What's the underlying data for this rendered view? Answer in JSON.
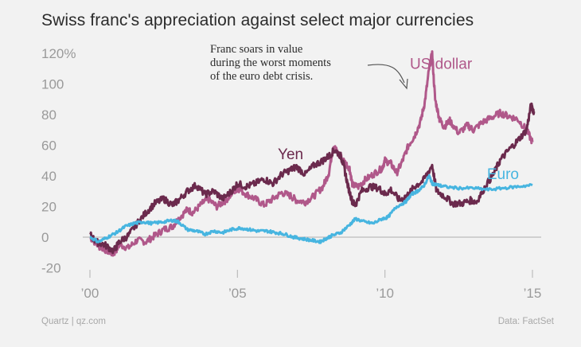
{
  "title": "Swiss franc's appreciation against select major currencies",
  "footer": {
    "source_left": "Quartz | qz.com",
    "source_right": "Data: FactSet"
  },
  "annotation": {
    "lines": [
      "Franc soars in value",
      "during the worst moments",
      "of the euro debt crisis."
    ]
  },
  "chart_data": {
    "type": "line",
    "title": "Swiss franc's appreciation against select major currencies",
    "xlabel": "",
    "ylabel": "",
    "xlim": [
      2000,
      2015.2
    ],
    "ylim": [
      -25,
      125
    ],
    "x_ticks": [
      {
        "value": 2000,
        "label": "’00"
      },
      {
        "value": 2005,
        "label": "’05"
      },
      {
        "value": 2010,
        "label": "’10"
      },
      {
        "value": 2015,
        "label": "’15"
      }
    ],
    "y_ticks": [
      {
        "value": 120,
        "label": "120%"
      },
      {
        "value": 100,
        "label": "100"
      },
      {
        "value": 80,
        "label": "80"
      },
      {
        "value": 60,
        "label": "60"
      },
      {
        "value": 40,
        "label": "40"
      },
      {
        "value": 20,
        "label": "20"
      },
      {
        "value": 0,
        "label": "0"
      },
      {
        "value": -20,
        "label": "-20"
      }
    ],
    "grid": false,
    "zero_line": true,
    "series": [
      {
        "name": "US dollar",
        "color": "#b0588a",
        "label_pos": {
          "x": 2011.9,
          "y": 110
        },
        "points": [
          [
            2000.0,
            0
          ],
          [
            2000.3,
            -6
          ],
          [
            2000.6,
            -9
          ],
          [
            2000.8,
            -11
          ],
          [
            2001.0,
            -5
          ],
          [
            2001.3,
            -7
          ],
          [
            2001.6,
            -2
          ],
          [
            2001.9,
            -3
          ],
          [
            2002.2,
            1
          ],
          [
            2002.5,
            5
          ],
          [
            2002.8,
            7
          ],
          [
            2003.0,
            12
          ],
          [
            2003.3,
            18
          ],
          [
            2003.5,
            16
          ],
          [
            2003.8,
            22
          ],
          [
            2004.0,
            25
          ],
          [
            2004.3,
            20
          ],
          [
            2004.6,
            24
          ],
          [
            2004.9,
            30
          ],
          [
            2005.0,
            32
          ],
          [
            2005.3,
            28
          ],
          [
            2005.6,
            25
          ],
          [
            2005.9,
            21
          ],
          [
            2006.2,
            25
          ],
          [
            2006.5,
            29
          ],
          [
            2006.8,
            27
          ],
          [
            2007.0,
            24
          ],
          [
            2007.3,
            23
          ],
          [
            2007.6,
            27
          ],
          [
            2007.9,
            33
          ],
          [
            2008.1,
            42
          ],
          [
            2008.25,
            60
          ],
          [
            2008.4,
            55
          ],
          [
            2008.6,
            50
          ],
          [
            2008.8,
            45
          ],
          [
            2008.9,
            34
          ],
          [
            2009.1,
            33
          ],
          [
            2009.3,
            37
          ],
          [
            2009.6,
            41
          ],
          [
            2009.9,
            45
          ],
          [
            2010.0,
            50
          ],
          [
            2010.2,
            48
          ],
          [
            2010.4,
            42
          ],
          [
            2010.6,
            50
          ],
          [
            2010.8,
            60
          ],
          [
            2011.0,
            66
          ],
          [
            2011.2,
            75
          ],
          [
            2011.35,
            88
          ],
          [
            2011.5,
            110
          ],
          [
            2011.6,
            120
          ],
          [
            2011.7,
            90
          ],
          [
            2011.85,
            77
          ],
          [
            2012.0,
            72
          ],
          [
            2012.2,
            76
          ],
          [
            2012.5,
            68
          ],
          [
            2012.8,
            73
          ],
          [
            2013.0,
            70
          ],
          [
            2013.3,
            75
          ],
          [
            2013.6,
            78
          ],
          [
            2013.9,
            81
          ],
          [
            2014.2,
            79
          ],
          [
            2014.5,
            77
          ],
          [
            2014.8,
            70
          ],
          [
            2015.0,
            62
          ]
        ]
      },
      {
        "name": "Yen",
        "color": "#6b2a4d",
        "label_pos": {
          "x": 2006.8,
          "y": 51
        },
        "points": [
          [
            2000.0,
            2
          ],
          [
            2000.2,
            -3
          ],
          [
            2000.5,
            -5
          ],
          [
            2000.8,
            -9
          ],
          [
            2001.0,
            -3
          ],
          [
            2001.3,
            1
          ],
          [
            2001.6,
            9
          ],
          [
            2001.9,
            16
          ],
          [
            2002.2,
            22
          ],
          [
            2002.5,
            25
          ],
          [
            2002.8,
            21
          ],
          [
            2003.0,
            24
          ],
          [
            2003.3,
            30
          ],
          [
            2003.6,
            34
          ],
          [
            2003.9,
            28
          ],
          [
            2004.2,
            30
          ],
          [
            2004.5,
            25
          ],
          [
            2004.8,
            30
          ],
          [
            2005.0,
            35
          ],
          [
            2005.3,
            33
          ],
          [
            2005.6,
            35
          ],
          [
            2005.9,
            38
          ],
          [
            2006.2,
            35
          ],
          [
            2006.5,
            41
          ],
          [
            2006.8,
            44
          ],
          [
            2007.0,
            46
          ],
          [
            2007.3,
            41
          ],
          [
            2007.6,
            47
          ],
          [
            2007.9,
            50
          ],
          [
            2008.1,
            53
          ],
          [
            2008.3,
            57
          ],
          [
            2008.5,
            53
          ],
          [
            2008.6,
            47
          ],
          [
            2008.75,
            33
          ],
          [
            2008.9,
            23
          ],
          [
            2009.0,
            21
          ],
          [
            2009.2,
            30
          ],
          [
            2009.5,
            33
          ],
          [
            2009.8,
            32
          ],
          [
            2010.0,
            28
          ],
          [
            2010.2,
            31
          ],
          [
            2010.5,
            24
          ],
          [
            2010.8,
            28
          ],
          [
            2011.0,
            33
          ],
          [
            2011.3,
            37
          ],
          [
            2011.6,
            47
          ],
          [
            2011.75,
            30
          ],
          [
            2012.0,
            27
          ],
          [
            2012.3,
            22
          ],
          [
            2012.6,
            22
          ],
          [
            2012.9,
            24
          ],
          [
            2013.1,
            23
          ],
          [
            2013.4,
            33
          ],
          [
            2013.7,
            42
          ],
          [
            2013.9,
            50
          ],
          [
            2014.2,
            57
          ],
          [
            2014.5,
            63
          ],
          [
            2014.8,
            70
          ],
          [
            2014.95,
            86
          ],
          [
            2015.05,
            82
          ]
        ]
      },
      {
        "name": "Euro",
        "color": "#47b5e0",
        "label_pos": {
          "x": 2014.0,
          "y": 38
        },
        "points": [
          [
            2000.0,
            0
          ],
          [
            2000.3,
            -3
          ],
          [
            2000.6,
            0
          ],
          [
            2000.9,
            3
          ],
          [
            2001.2,
            7
          ],
          [
            2001.5,
            9
          ],
          [
            2001.8,
            10
          ],
          [
            2002.1,
            9
          ],
          [
            2002.5,
            10
          ],
          [
            2002.8,
            11
          ],
          [
            2003.0,
            10
          ],
          [
            2003.3,
            5
          ],
          [
            2003.6,
            4
          ],
          [
            2003.9,
            2
          ],
          [
            2004.2,
            4
          ],
          [
            2004.5,
            3
          ],
          [
            2004.8,
            5
          ],
          [
            2005.1,
            6
          ],
          [
            2005.4,
            5
          ],
          [
            2005.7,
            4
          ],
          [
            2006.0,
            4
          ],
          [
            2006.3,
            3
          ],
          [
            2006.6,
            2
          ],
          [
            2006.9,
            0
          ],
          [
            2007.2,
            -1
          ],
          [
            2007.5,
            -2
          ],
          [
            2007.8,
            -3
          ],
          [
            2008.0,
            -1
          ],
          [
            2008.2,
            1
          ],
          [
            2008.5,
            3
          ],
          [
            2008.8,
            8
          ],
          [
            2009.0,
            12
          ],
          [
            2009.3,
            10
          ],
          [
            2009.6,
            9
          ],
          [
            2009.9,
            12
          ],
          [
            2010.1,
            13
          ],
          [
            2010.4,
            20
          ],
          [
            2010.7,
            23
          ],
          [
            2010.9,
            28
          ],
          [
            2011.1,
            30
          ],
          [
            2011.3,
            33
          ],
          [
            2011.5,
            40
          ],
          [
            2011.6,
            35
          ],
          [
            2011.8,
            34
          ],
          [
            2012.0,
            33
          ],
          [
            2012.5,
            32
          ],
          [
            2013.0,
            32
          ],
          [
            2013.5,
            31
          ],
          [
            2014.0,
            32
          ],
          [
            2014.5,
            33
          ],
          [
            2015.0,
            34
          ]
        ]
      }
    ]
  }
}
